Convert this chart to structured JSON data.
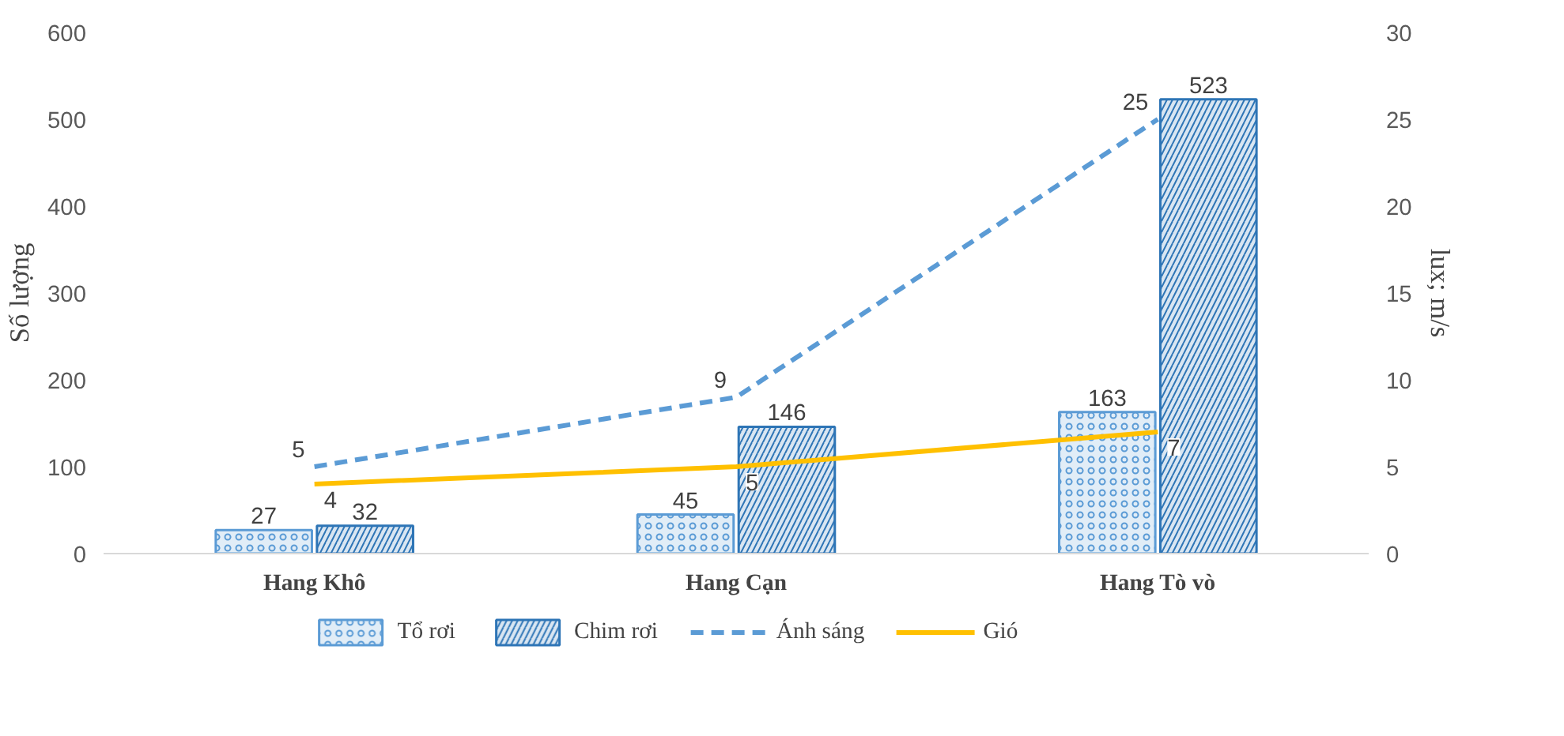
{
  "chart_data": {
    "type": "bar",
    "categories": [
      "Hang Khô",
      "Hang Cạn",
      "Hang Tò vò"
    ],
    "ylabel": "Số lượng",
    "y2label": "lux; m/s",
    "ylim": [
      0,
      600
    ],
    "yticks": [
      0,
      100,
      200,
      300,
      400,
      500,
      600
    ],
    "y2lim": [
      0,
      30
    ],
    "y2ticks": [
      0,
      5,
      10,
      15,
      20,
      25,
      30
    ],
    "grid": false,
    "legend": "bottom",
    "data_labels": true,
    "series": [
      {
        "name": "Tổ rơi",
        "color": "#5b9bd5",
        "values": [
          27,
          45,
          163
        ]
      },
      {
        "name": "Chim rơi",
        "color": "#2e75b6",
        "values": [
          32,
          146,
          523
        ]
      },
      {
        "name": "Ánh sáng",
        "type": "line",
        "axis": "y2",
        "line_style": "dashed",
        "color": "#5b9bd5",
        "values": [
          5,
          9,
          25
        ]
      },
      {
        "name": "Gió",
        "type": "line",
        "axis": "y2",
        "line_style": "solid",
        "color": "#ffc000",
        "values": [
          4,
          5,
          7
        ]
      }
    ]
  }
}
